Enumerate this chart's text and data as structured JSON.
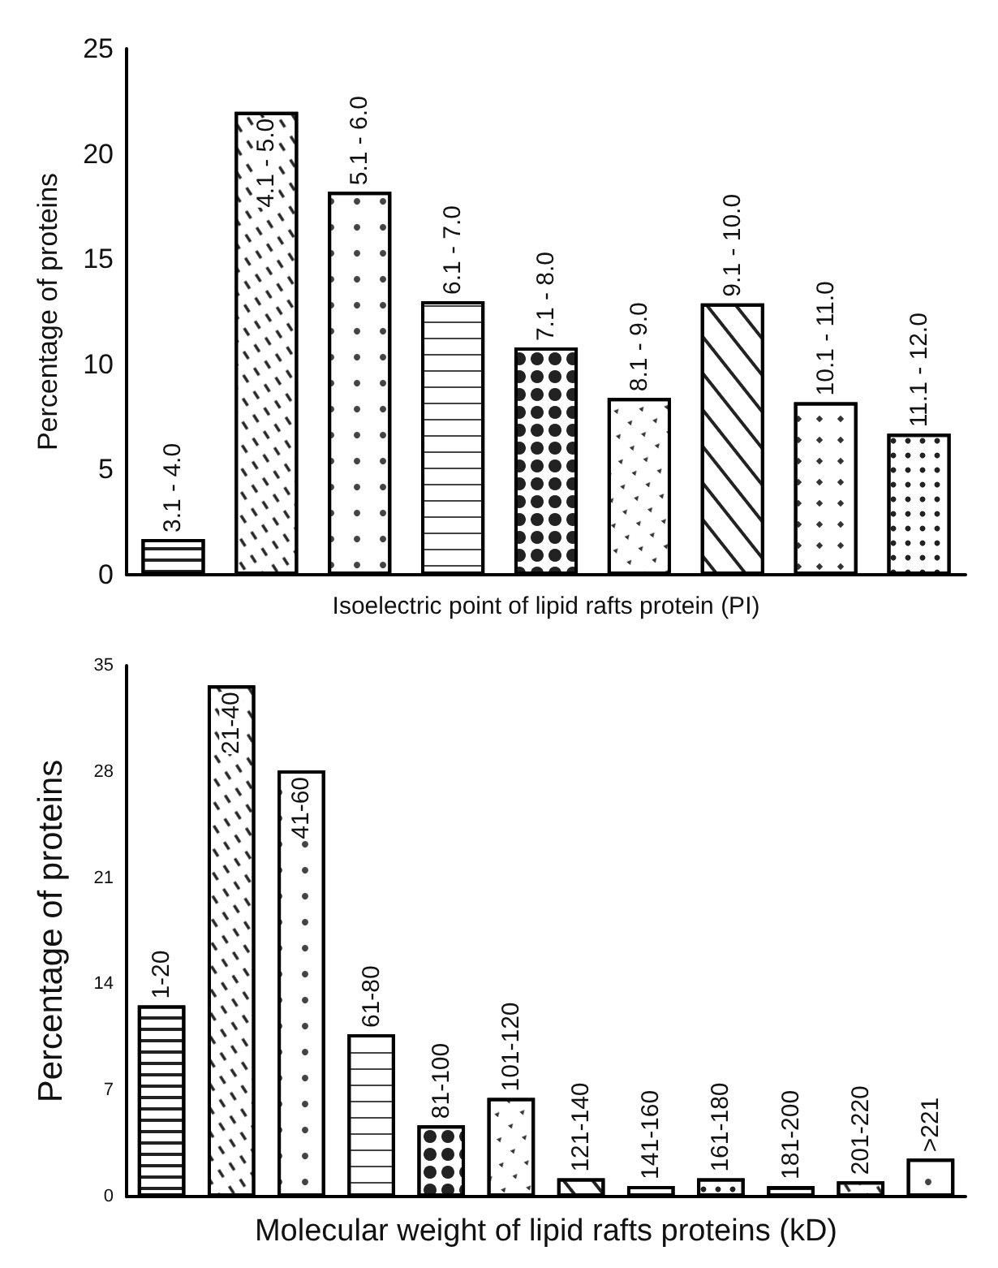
{
  "chart_data": [
    {
      "type": "bar",
      "xlabel": "Isoelectric point of lipid rafts protein (PI)",
      "ylabel": "Percentage of proteins",
      "categories": [
        "3.1 - 4.0",
        "4.1 - 5.0",
        "5.1 - 6.0",
        "6.1 - 7.0",
        "7.1 - 8.0",
        "8.1 - 9.0",
        "9.1 - 10.0",
        "10.1 - 11.0",
        "11.1 - 12.0"
      ],
      "values": [
        1.7,
        22.0,
        18.2,
        13.0,
        10.8,
        8.4,
        12.9,
        8.2,
        6.7
      ],
      "color": "#ffffff",
      "ylim": [
        0,
        25
      ],
      "yticks": [
        0,
        5,
        10,
        15,
        20,
        25
      ]
    },
    {
      "type": "bar",
      "xlabel": "Molecular weight of lipid rafts proteins (kD)",
      "ylabel": "Percentage of proteins",
      "categories": [
        "1-20",
        "21-40",
        "41-60",
        "61-80",
        "81-100",
        "101-120",
        "121-140",
        "141-160",
        "161-180",
        "181-200",
        "201-220",
        ">221"
      ],
      "values": [
        12.6,
        33.7,
        28.1,
        10.7,
        4.7,
        6.5,
        1.2,
        0.7,
        1.2,
        0.7,
        1.0,
        2.5
      ],
      "color": "#ffffff",
      "ylim": [
        0,
        35
      ],
      "yticks": [
        0,
        7,
        14,
        21,
        28,
        35
      ]
    }
  ]
}
